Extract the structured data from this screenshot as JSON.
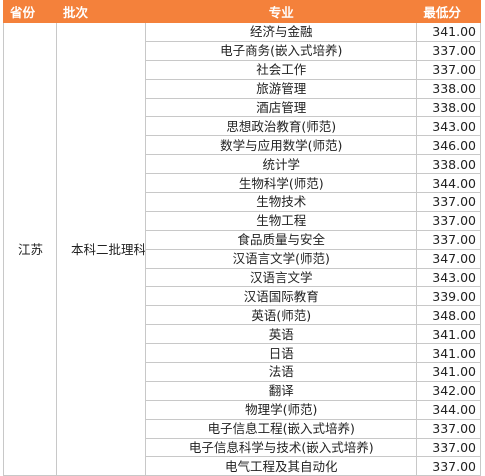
{
  "table": {
    "header": [
      "省份",
      "批次",
      "专业",
      "最低分"
    ],
    "province": "江苏",
    "batch": "本科二批理科",
    "rows": [
      [
        "经济与金融",
        "341.00"
      ],
      [
        "电子商务(嵌入式培养)",
        "337.00"
      ],
      [
        "社会工作",
        "337.00"
      ],
      [
        "旅游管理",
        "338.00"
      ],
      [
        "酒店管理",
        "338.00"
      ],
      [
        "思想政治教育(师范)",
        "343.00"
      ],
      [
        "数学与应用数学(师范)",
        "346.00"
      ],
      [
        "统计学",
        "338.00"
      ],
      [
        "生物科学(师范)",
        "344.00"
      ],
      [
        "生物技术",
        "337.00"
      ],
      [
        "生物工程",
        "337.00"
      ],
      [
        "食品质量与安全",
        "337.00"
      ],
      [
        "汉语言文学(师范)",
        "347.00"
      ],
      [
        "汉语言文学",
        "343.00"
      ],
      [
        "汉语国际教育",
        "339.00"
      ],
      [
        "英语(师范)",
        "348.00"
      ],
      [
        "英语",
        "341.00"
      ],
      [
        "日语",
        "341.00"
      ],
      [
        "法语",
        "341.00"
      ],
      [
        "翻译",
        "342.00"
      ],
      [
        "物理学(师范)",
        "344.00"
      ],
      [
        "电子信息工程(嵌入式培养)",
        "337.00"
      ],
      [
        "电子信息科学与技术(嵌入式培养)",
        "337.00"
      ],
      [
        "电气工程及其自动化",
        "337.00"
      ]
    ]
  }
}
